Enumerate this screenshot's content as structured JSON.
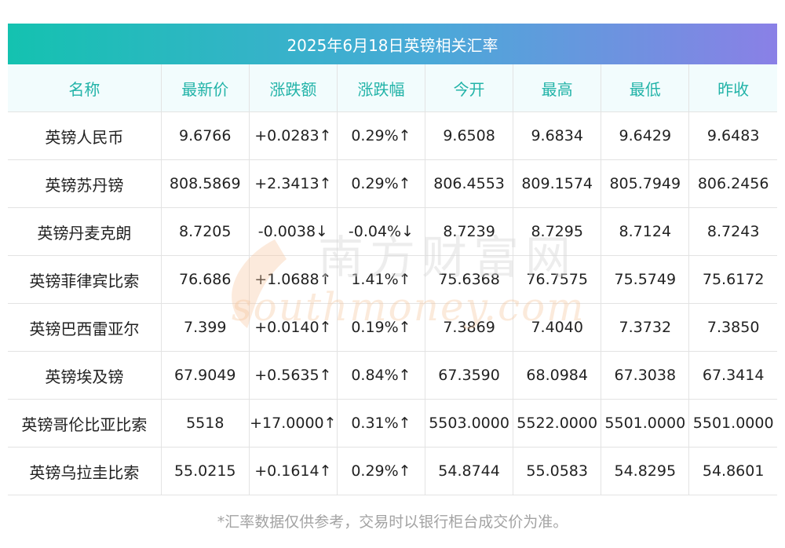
{
  "title": "2025年6月18日英镑相关汇率",
  "columns": [
    "名称",
    "最新价",
    "涨跌额",
    "涨跌幅",
    "今开",
    "最高",
    "最低",
    "昨收"
  ],
  "rows": [
    {
      "name": "英镑人民币",
      "latest": "9.6766",
      "change": "+0.0283↑",
      "pct": "0.29%↑",
      "open": "9.6508",
      "high": "9.6834",
      "low": "9.6429",
      "prev": "9.6483",
      "trend": "up"
    },
    {
      "name": "英镑苏丹镑",
      "latest": "808.5869",
      "change": "+2.3413↑",
      "pct": "0.29%↑",
      "open": "806.4553",
      "high": "809.1574",
      "low": "805.7949",
      "prev": "806.2456",
      "trend": "up"
    },
    {
      "name": "英镑丹麦克朗",
      "latest": "8.7205",
      "change": "-0.0038↓",
      "pct": "-0.04%↓",
      "open": "8.7239",
      "high": "8.7295",
      "low": "8.7124",
      "prev": "8.7243",
      "trend": "down"
    },
    {
      "name": "英镑菲律宾比索",
      "latest": "76.686",
      "change": "+1.0688↑",
      "pct": "1.41%↑",
      "open": "75.6368",
      "high": "76.7575",
      "low": "75.5749",
      "prev": "75.6172",
      "trend": "up"
    },
    {
      "name": "英镑巴西雷亚尔",
      "latest": "7.399",
      "change": "+0.0140↑",
      "pct": "0.19%↑",
      "open": "7.3869",
      "high": "7.4040",
      "low": "7.3732",
      "prev": "7.3850",
      "trend": "up"
    },
    {
      "name": "英镑埃及镑",
      "latest": "67.9049",
      "change": "+0.5635↑",
      "pct": "0.84%↑",
      "open": "67.3590",
      "high": "68.0984",
      "low": "67.3038",
      "prev": "67.3414",
      "trend": "up"
    },
    {
      "name": "英镑哥伦比亚比索",
      "latest": "5518",
      "change": "+17.0000↑",
      "pct": "0.31%↑",
      "open": "5503.0000",
      "high": "5522.0000",
      "low": "5501.0000",
      "prev": "5501.0000",
      "trend": "up"
    },
    {
      "name": "英镑乌拉圭比索",
      "latest": "55.0215",
      "change": "+0.1614↑",
      "pct": "0.29%↑",
      "open": "54.8744",
      "high": "55.0583",
      "low": "54.8295",
      "prev": "54.8601",
      "trend": "up"
    }
  ],
  "watermark": {
    "brand_cn": "南方财富网",
    "brand_en": "southmoney.com"
  },
  "footnote": "*汇率数据仅供参考，交易时以银行柜台成交价为准。",
  "colors": {
    "up": "#ef2b2b",
    "down": "#1a8a1a",
    "header_text": "#22b3a8",
    "banner_start": "#14c2b0",
    "banner_end": "#8a80e6"
  }
}
